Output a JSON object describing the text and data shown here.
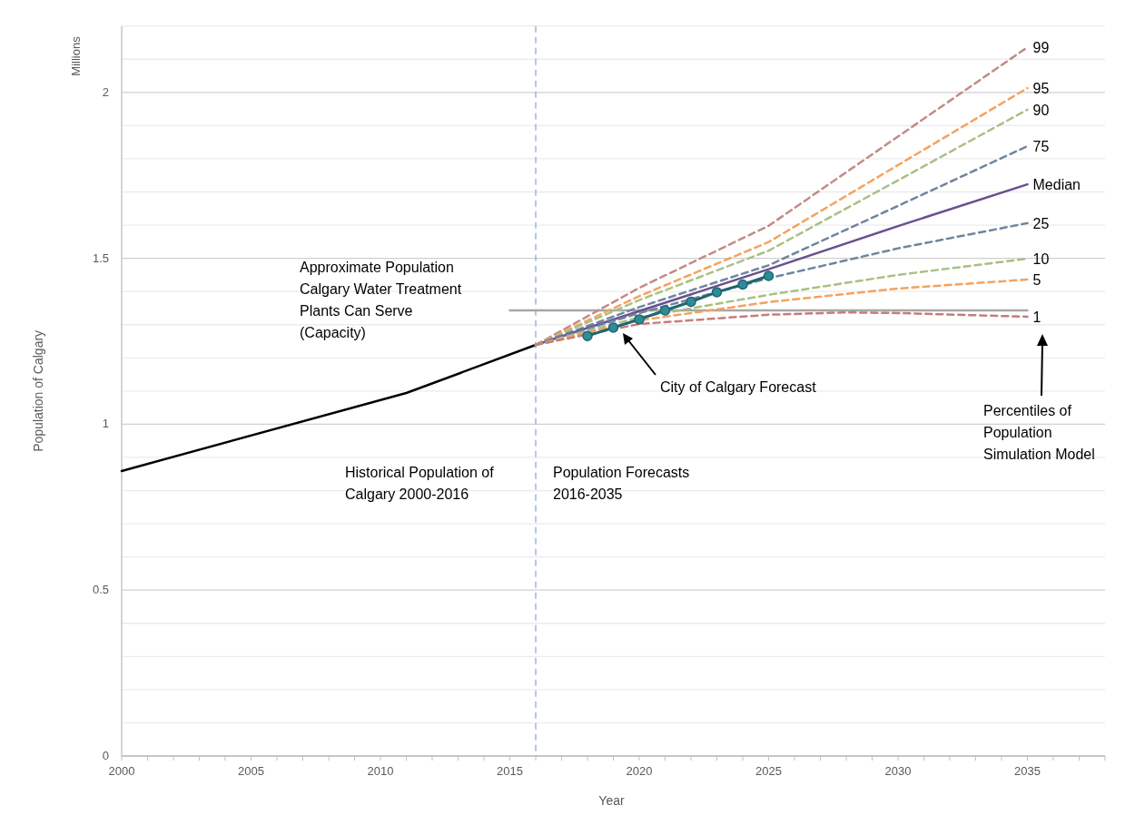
{
  "chart_data": {
    "type": "line",
    "xlabel": "Year",
    "ylabel": "Population of Calgary",
    "xlim": [
      2000,
      2038
    ],
    "xticks": [
      2000,
      {
        "value": 2001,
        "label": null
      },
      {
        "value": 2002,
        "label": null
      },
      {
        "value": 2003,
        "label": null
      },
      {
        "value": 2004,
        "label": null
      },
      2005,
      {
        "value": 2006,
        "label": null
      },
      {
        "value": 2007,
        "label": null
      },
      {
        "value": 2008,
        "label": null
      },
      {
        "value": 2009,
        "label": null
      },
      2010,
      {
        "value": 2011,
        "label": null
      },
      {
        "value": 2012,
        "label": null
      },
      {
        "value": 2013,
        "label": null
      },
      {
        "value": 2014,
        "label": null
      },
      2015,
      {
        "value": 2016,
        "label": null
      },
      {
        "value": 2017,
        "label": null
      },
      {
        "value": 2018,
        "label": null
      },
      {
        "value": 2019,
        "label": null
      },
      2020,
      {
        "value": 2021,
        "label": null
      },
      {
        "value": 2022,
        "label": null
      },
      {
        "value": 2023,
        "label": null
      },
      {
        "value": 2024,
        "label": null
      },
      2025,
      {
        "value": 2026,
        "label": null
      },
      {
        "value": 2027,
        "label": null
      },
      {
        "value": 2028,
        "label": null
      },
      {
        "value": 2029,
        "label": null
      },
      2030,
      {
        "value": 2031,
        "label": null
      },
      {
        "value": 2032,
        "label": null
      },
      {
        "value": 2033,
        "label": null
      },
      {
        "value": 2034,
        "label": null
      },
      2035,
      {
        "value": 2036,
        "label": null
      },
      {
        "value": 2037,
        "label": null
      },
      {
        "value": 2038,
        "label": null
      }
    ],
    "ylim": [
      0,
      2.2
    ],
    "yticks": [
      0,
      {
        "value": 0.1,
        "label": null
      },
      {
        "value": 0.2,
        "label": null
      },
      {
        "value": 0.3,
        "label": null
      },
      {
        "value": 0.4,
        "label": null
      },
      0.5,
      {
        "value": 0.6,
        "label": null
      },
      {
        "value": 0.7,
        "label": null
      },
      {
        "value": 0.8,
        "label": null
      },
      {
        "value": 0.9,
        "label": null
      },
      1,
      {
        "value": 1.1,
        "label": null
      },
      {
        "value": 1.2,
        "label": null
      },
      {
        "value": 1.3,
        "label": null
      },
      {
        "value": 1.4,
        "label": null
      },
      1.5,
      {
        "value": 1.6,
        "label": null
      },
      {
        "value": 1.7,
        "label": null
      },
      {
        "value": 1.8,
        "label": null
      },
      {
        "value": 1.9,
        "label": null
      },
      2,
      {
        "value": 2.1,
        "label": null
      },
      {
        "value": 2.2,
        "label": null
      }
    ],
    "grid": "y",
    "marker": "none",
    "ref_lines": [
      {
        "axis": "x",
        "value": 2016,
        "color": "#8faadc",
        "line_style": "dashed"
      }
    ],
    "annotations": [
      "Millions",
      "Approximate Population Calgary Water Treatment Plants Can Serve (Capacity)",
      "City of Calgary Forecast",
      "Percentiles of Population Simulation Model",
      "Historical Population of Calgary 2000-2016",
      "Population Forecasts 2016-2035"
    ],
    "series": [
      {
        "color": "#000000",
        "x": [
          2000,
          2011,
          2016
        ],
        "values": [
          0.859,
          1.094,
          1.239
        ],
        "line_style": "solid"
      },
      {
        "color": "#a6a6a6",
        "x": [
          2015,
          2035
        ],
        "values": [
          1.343,
          1.343
        ],
        "line_style": "solid"
      },
      {
        "name": "99",
        "color": "#c48a86",
        "x": [
          2016,
          2020,
          2025,
          2030,
          2035
        ],
        "values": [
          1.239,
          1.411,
          1.598,
          1.867,
          2.136
        ],
        "line_style": "dashed"
      },
      {
        "name": "95",
        "color": "#f4a261",
        "x": [
          2016,
          2020,
          2025,
          2030,
          2035
        ],
        "values": [
          1.239,
          1.386,
          1.549,
          1.781,
          2.013
        ],
        "line_style": "dashed"
      },
      {
        "name": "90",
        "color": "#a9c083",
        "x": [
          2016,
          2020,
          2025,
          2030,
          2035
        ],
        "values": [
          1.239,
          1.374,
          1.523,
          1.735,
          1.948
        ],
        "line_style": "dashed"
      },
      {
        "name": "75",
        "color": "#7085a0",
        "x": [
          2016,
          2020,
          2025,
          2030,
          2035
        ],
        "values": [
          1.239,
          1.353,
          1.479,
          1.658,
          1.838
        ],
        "line_style": "dashed"
      },
      {
        "name": "Median",
        "color": "#6a4f8e",
        "x": [
          2016,
          2020,
          2025,
          2030,
          2035
        ],
        "values": [
          1.239,
          1.341,
          1.467,
          1.597,
          1.723
        ],
        "line_style": "solid"
      },
      {
        "name": "25",
        "color": "#7085a0",
        "x": [
          2016,
          2020,
          2025,
          2030,
          2035
        ],
        "values": [
          1.239,
          1.335,
          1.44,
          1.53,
          1.606
        ],
        "line_style": "dashed"
      },
      {
        "name": "10",
        "color": "#a9c083",
        "x": [
          2016,
          2020,
          2025,
          2030,
          2035
        ],
        "values": [
          1.239,
          1.322,
          1.39,
          1.45,
          1.499
        ],
        "line_style": "dashed"
      },
      {
        "name": "5",
        "color": "#f4a261",
        "x": [
          2016,
          2020,
          2025,
          2030,
          2035
        ],
        "values": [
          1.239,
          1.313,
          1.368,
          1.409,
          1.436
        ],
        "line_style": "dashed"
      },
      {
        "name": "1",
        "color": "#c47d7c",
        "x": [
          2016,
          2020,
          2025,
          2028,
          2030,
          2035
        ],
        "values": [
          1.239,
          1.302,
          1.33,
          1.337,
          1.335,
          1.324
        ],
        "line_style": "dashed"
      },
      {
        "color": "#1f6570",
        "x": [
          2018,
          2019,
          2020,
          2021,
          2022,
          2023,
          2024,
          2025
        ],
        "values": [
          1.266,
          1.291,
          1.316,
          1.343,
          1.369,
          1.398,
          1.421,
          1.447
        ],
        "line_style": "solid",
        "marker": "circle"
      }
    ]
  }
}
